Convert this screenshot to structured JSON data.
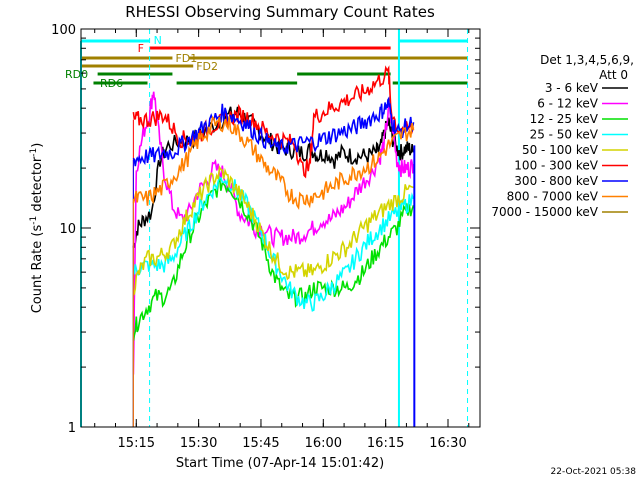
{
  "chart_data": {
    "type": "line",
    "title": "RHESSI Observing Summary Count Rates",
    "xlabel": "Start Time (07-Apr-14 15:01:42)",
    "ylabel": "Count Rate (s",
    "ylabel_sup": "-1",
    "ylabel_mid": " detector",
    "ylabel_tail": ")",
    "y_scale": "log",
    "ylim": [
      1,
      100
    ],
    "xlim_minutes": [
      0,
      96
    ],
    "x_ticks": [
      {
        "m": 13.3,
        "label": "15:15"
      },
      {
        "m": 28.3,
        "label": "15:30"
      },
      {
        "m": 43.3,
        "label": "15:45"
      },
      {
        "m": 58.3,
        "label": "16:00"
      },
      {
        "m": 73.3,
        "label": "16:15"
      },
      {
        "m": 88.3,
        "label": "16:30"
      }
    ],
    "y_ticks": [
      {
        "v": 1,
        "label": "1"
      },
      {
        "v": 10,
        "label": "10"
      },
      {
        "v": 100,
        "label": "100"
      }
    ],
    "legend_header": [
      "Det 1,3,4,5,6,9,",
      "Att 0"
    ],
    "series": [
      {
        "name": "3 - 6 keV",
        "color": "#000000",
        "points": [
          [
            12.6,
            8
          ],
          [
            13.6,
            10
          ],
          [
            15,
            11
          ],
          [
            17,
            12
          ],
          [
            19,
            22
          ],
          [
            21,
            26
          ],
          [
            24,
            27
          ],
          [
            27,
            28
          ],
          [
            30,
            31
          ],
          [
            33,
            34
          ],
          [
            36,
            37
          ],
          [
            38,
            38
          ],
          [
            40,
            35
          ],
          [
            42,
            32
          ],
          [
            44,
            29
          ],
          [
            46,
            27
          ],
          [
            48,
            25
          ],
          [
            50,
            25
          ],
          [
            52,
            24
          ],
          [
            54,
            24
          ],
          [
            55.5,
            25
          ],
          [
            57,
            23
          ],
          [
            59,
            24
          ],
          [
            61,
            22
          ],
          [
            63,
            24
          ],
          [
            65,
            23
          ],
          [
            67,
            23
          ],
          [
            69,
            23
          ],
          [
            71,
            24
          ],
          [
            72,
            25
          ],
          [
            73,
            30
          ],
          [
            74,
            34
          ],
          [
            75,
            28
          ],
          [
            76,
            25
          ],
          [
            77,
            24
          ],
          [
            78,
            25
          ],
          [
            79,
            25
          ],
          [
            80,
            24
          ]
        ]
      },
      {
        "name": "6 - 12 keV",
        "color": "#ff00ff",
        "points": [
          [
            12.6,
            2
          ],
          [
            13.3,
            20
          ],
          [
            15,
            30
          ],
          [
            16.5,
            38
          ],
          [
            17.5,
            50
          ],
          [
            18.5,
            32
          ],
          [
            20,
            19
          ],
          [
            22,
            13
          ],
          [
            24,
            11
          ],
          [
            26,
            12
          ],
          [
            28,
            15
          ],
          [
            30,
            17
          ],
          [
            32,
            20
          ],
          [
            34,
            19
          ],
          [
            36,
            16
          ],
          [
            38,
            12
          ],
          [
            40,
            11
          ],
          [
            42,
            10
          ],
          [
            44,
            10
          ],
          [
            46,
            9
          ],
          [
            48,
            9
          ],
          [
            50,
            9
          ],
          [
            52,
            9
          ],
          [
            54,
            9.5
          ],
          [
            56,
            10
          ],
          [
            58,
            11
          ],
          [
            60,
            11
          ],
          [
            62,
            12
          ],
          [
            64,
            13
          ],
          [
            66,
            15
          ],
          [
            68,
            17
          ],
          [
            70,
            19
          ],
          [
            72,
            23
          ],
          [
            73,
            27
          ],
          [
            74,
            40
          ],
          [
            75,
            32
          ],
          [
            76,
            22
          ],
          [
            77,
            20
          ],
          [
            78,
            20
          ],
          [
            79,
            20
          ],
          [
            80,
            21
          ]
        ]
      },
      {
        "name": "12 - 25 keV",
        "color": "#00e000",
        "points": [
          [
            12.6,
            3
          ],
          [
            14,
            3.5
          ],
          [
            16,
            4
          ],
          [
            18,
            4.5
          ],
          [
            20,
            4.5
          ],
          [
            22,
            5
          ],
          [
            24,
            7
          ],
          [
            26,
            9
          ],
          [
            28,
            11
          ],
          [
            30,
            13
          ],
          [
            32,
            15
          ],
          [
            34,
            17
          ],
          [
            36,
            16
          ],
          [
            38,
            14
          ],
          [
            40,
            12
          ],
          [
            42,
            10
          ],
          [
            44,
            8
          ],
          [
            46,
            6
          ],
          [
            48,
            5
          ],
          [
            50,
            4.5
          ],
          [
            52,
            4.5
          ],
          [
            54,
            4.5
          ],
          [
            56,
            5
          ],
          [
            58,
            5
          ],
          [
            60,
            5
          ],
          [
            62,
            5
          ],
          [
            64,
            5
          ],
          [
            66,
            5.5
          ],
          [
            68,
            6
          ],
          [
            70,
            7
          ],
          [
            72,
            8
          ],
          [
            74,
            9
          ],
          [
            76,
            10
          ],
          [
            78,
            12
          ],
          [
            80,
            13
          ]
        ]
      },
      {
        "name": "25 - 50 keV",
        "color": "#00ffff",
        "points": [
          [
            12.6,
            6
          ],
          [
            14,
            6.3
          ],
          [
            16,
            6.5
          ],
          [
            18,
            6.5
          ],
          [
            20,
            6.5
          ],
          [
            22,
            7
          ],
          [
            24,
            8.5
          ],
          [
            26,
            10
          ],
          [
            28,
            12
          ],
          [
            30,
            14
          ],
          [
            32,
            16
          ],
          [
            34,
            18
          ],
          [
            36,
            17
          ],
          [
            38,
            15
          ],
          [
            40,
            13
          ],
          [
            42,
            11
          ],
          [
            44,
            9
          ],
          [
            46,
            7
          ],
          [
            48,
            6
          ],
          [
            50,
            5
          ],
          [
            52,
            4.5
          ],
          [
            54,
            4.2
          ],
          [
            56,
            4.2
          ],
          [
            58,
            4.5
          ],
          [
            60,
            5
          ],
          [
            62,
            5.5
          ],
          [
            64,
            6
          ],
          [
            66,
            7
          ],
          [
            68,
            8
          ],
          [
            70,
            9
          ],
          [
            72,
            10
          ],
          [
            74,
            11
          ],
          [
            76,
            12
          ],
          [
            78,
            13
          ],
          [
            80,
            14
          ]
        ]
      },
      {
        "name": "50 - 100 keV",
        "color": "#d4d400",
        "points": [
          [
            12.6,
            5
          ],
          [
            14,
            6
          ],
          [
            16,
            7
          ],
          [
            18,
            7
          ],
          [
            20,
            7.5
          ],
          [
            22,
            8
          ],
          [
            24,
            10
          ],
          [
            26,
            12
          ],
          [
            28,
            14
          ],
          [
            30,
            16
          ],
          [
            32,
            18
          ],
          [
            34,
            19
          ],
          [
            36,
            17
          ],
          [
            38,
            15
          ],
          [
            40,
            13
          ],
          [
            42,
            11
          ],
          [
            44,
            9
          ],
          [
            46,
            7.5
          ],
          [
            48,
            6.5
          ],
          [
            50,
            6
          ],
          [
            52,
            6
          ],
          [
            54,
            6
          ],
          [
            56,
            6
          ],
          [
            58,
            6.5
          ],
          [
            60,
            7
          ],
          [
            62,
            7.5
          ],
          [
            64,
            8
          ],
          [
            66,
            9
          ],
          [
            68,
            10
          ],
          [
            70,
            11
          ],
          [
            72,
            12
          ],
          [
            74,
            13
          ],
          [
            76,
            14
          ],
          [
            78,
            15
          ],
          [
            80,
            16
          ]
        ]
      },
      {
        "name": "100 - 300 keV",
        "color": "#ff0000",
        "points": [
          [
            12.6,
            35
          ],
          [
            14,
            35
          ],
          [
            16,
            35
          ],
          [
            18,
            36
          ],
          [
            20,
            37
          ],
          [
            22,
            32
          ],
          [
            24,
            28
          ],
          [
            26,
            28
          ],
          [
            28,
            29
          ],
          [
            30,
            31
          ],
          [
            32,
            33
          ],
          [
            34,
            34
          ],
          [
            36,
            36
          ],
          [
            38,
            37
          ],
          [
            40,
            36
          ],
          [
            42,
            34
          ],
          [
            44,
            31
          ],
          [
            46,
            29
          ],
          [
            48,
            28
          ],
          [
            50,
            27
          ],
          [
            51.5,
            27
          ],
          [
            53,
            20
          ],
          [
            55,
            20
          ],
          [
            56,
            36
          ],
          [
            58,
            38
          ],
          [
            60,
            40
          ],
          [
            62,
            42
          ],
          [
            64,
            44
          ],
          [
            66,
            46
          ],
          [
            68,
            48
          ],
          [
            70,
            52
          ],
          [
            72,
            56
          ],
          [
            74,
            60
          ],
          [
            74.6,
            40
          ],
          [
            76,
            32
          ],
          [
            78,
            31
          ],
          [
            80,
            32
          ]
        ]
      },
      {
        "name": "300 - 800 keV",
        "color": "#0000ff",
        "points": [
          [
            12.6,
            22
          ],
          [
            14,
            22.5
          ],
          [
            16,
            23
          ],
          [
            18,
            23
          ],
          [
            20,
            24
          ],
          [
            22,
            24
          ],
          [
            24,
            26
          ],
          [
            26,
            28
          ],
          [
            28,
            30
          ],
          [
            30,
            33
          ],
          [
            32,
            35
          ],
          [
            34,
            38
          ],
          [
            36,
            37
          ],
          [
            38,
            35
          ],
          [
            40,
            33
          ],
          [
            42,
            30
          ],
          [
            44,
            28
          ],
          [
            46,
            26
          ],
          [
            48,
            25
          ],
          [
            50,
            26
          ],
          [
            52,
            26
          ],
          [
            54,
            27
          ],
          [
            56,
            27
          ],
          [
            58,
            28
          ],
          [
            60,
            29
          ],
          [
            62,
            30
          ],
          [
            64,
            31
          ],
          [
            66,
            32
          ],
          [
            68,
            34
          ],
          [
            70,
            36
          ],
          [
            72,
            38
          ],
          [
            73,
            40
          ],
          [
            74,
            42
          ],
          [
            75,
            34
          ],
          [
            76,
            30
          ],
          [
            78,
            32
          ],
          [
            80,
            34
          ]
        ]
      },
      {
        "name": "800 - 7000 keV",
        "color": "#ff8000",
        "points": [
          [
            12.6,
            14
          ],
          [
            14,
            14
          ],
          [
            16,
            14
          ],
          [
            18,
            15
          ],
          [
            20,
            16
          ],
          [
            22,
            18
          ],
          [
            24,
            20
          ],
          [
            26,
            23
          ],
          [
            28,
            27
          ],
          [
            30,
            30
          ],
          [
            32,
            33
          ],
          [
            34,
            34
          ],
          [
            36,
            33
          ],
          [
            38,
            30
          ],
          [
            40,
            27
          ],
          [
            42,
            24
          ],
          [
            44,
            21
          ],
          [
            46,
            19
          ],
          [
            48,
            17
          ],
          [
            50,
            15
          ],
          [
            52,
            14
          ],
          [
            54,
            14
          ],
          [
            56,
            14.5
          ],
          [
            58,
            15
          ],
          [
            60,
            16
          ],
          [
            62,
            17
          ],
          [
            64,
            18
          ],
          [
            66,
            19
          ],
          [
            68,
            20
          ],
          [
            70,
            21
          ],
          [
            72,
            23
          ],
          [
            74,
            26
          ],
          [
            76,
            28
          ],
          [
            78,
            30
          ],
          [
            80,
            31
          ]
        ]
      },
      {
        "name": "7000 - 15000 keV",
        "color": "#a08000",
        "points": []
      }
    ],
    "flag_bars": [
      {
        "label": "N",
        "color": "#00ffff",
        "y": 41,
        "segments": [
          [
            0,
            16.5
          ],
          [
            76.5,
            93
          ]
        ]
      },
      {
        "label": "F",
        "color": "#ff0000",
        "y": 48,
        "segments": [
          [
            16.5,
            74.5
          ]
        ]
      },
      {
        "label": "FD1",
        "color": "#a08000",
        "y": 58,
        "segments": [
          [
            0,
            22
          ],
          [
            26,
            93
          ]
        ]
      },
      {
        "label": "FD2",
        "color": "#a08000",
        "y": 66,
        "segments": [
          [
            0,
            27
          ]
        ]
      },
      {
        "label": "RD0",
        "color": "#008000",
        "y": 74,
        "segments": [
          [
            4,
            22
          ],
          [
            52,
            74.5
          ]
        ]
      },
      {
        "label": "RD6",
        "color": "#008000",
        "y": 83,
        "segments": [
          [
            3,
            16
          ],
          [
            23,
            52
          ],
          [
            75,
            93
          ]
        ]
      }
    ],
    "vertical_markers_minutes": {
      "solid": [
        76.5
      ],
      "dashed": [
        16.5,
        93
      ]
    },
    "timestamp": "22-Oct-2021 05:38"
  }
}
